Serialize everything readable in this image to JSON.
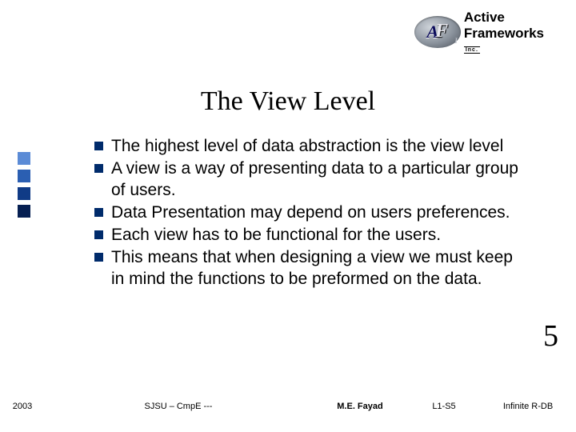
{
  "logo": {
    "line1": "Active",
    "line2": "Frameworks",
    "inc": "Inc."
  },
  "title": "The View Level",
  "bullet_color": "#002b6b",
  "side_bar_colors": [
    "#5b8bd6",
    "#2b5fb2",
    "#103b86",
    "#061f52"
  ],
  "bullets": [
    "The highest level of data abstraction is the view level",
    "A view is a way of presenting data to a particular group of users.",
    "Data Presentation may depend on users preferences.",
    "Each view has to be functional for the users.",
    "This means that when designing a view we must keep in mind the functions to be preformed on the data."
  ],
  "page_number": "5",
  "footer": {
    "year": "2003",
    "center": "SJSU – CmpE ---",
    "author": "M.E. Fayad",
    "code": "L1-S5",
    "right": "Infinite R-DB"
  }
}
